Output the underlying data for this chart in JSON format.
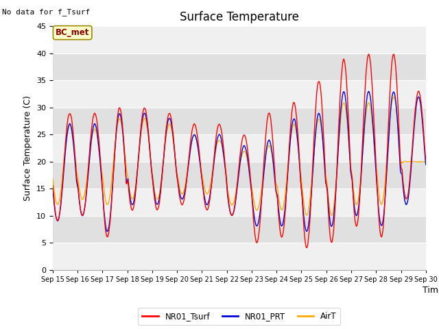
{
  "title": "Surface Temperature",
  "xlabel": "Time",
  "ylabel": "Surface Temperature (C)",
  "top_left_text": "No data for f_Tsurf",
  "bc_met_label": "BC_met",
  "ylim": [
    0,
    45
  ],
  "yticks": [
    0,
    5,
    10,
    15,
    20,
    25,
    30,
    35,
    40,
    45
  ],
  "x_labels": [
    "Sep 15",
    "Sep 16",
    "Sep 17",
    "Sep 18",
    "Sep 19",
    "Sep 20",
    "Sep 21",
    "Sep 22",
    "Sep 23",
    "Sep 24",
    "Sep 25",
    "Sep 26",
    "Sep 27",
    "Sep 28",
    "Sep 29",
    "Sep 30"
  ],
  "legend_labels": [
    "NR01_Tsurf",
    "NR01_PRT",
    "AirT"
  ],
  "colors": {
    "NR01_Tsurf": "#ff0000",
    "NR01_PRT": "#0000dd",
    "AirT": "#ffaa00",
    "bc_met_bg": "#ffffcc",
    "bc_met_border": "#998800",
    "plot_bg_light": "#f0f0f0",
    "plot_bg_dark": "#e0e0e0",
    "grid_line": "#ffffff"
  },
  "mins_tsurf": [
    9,
    10,
    6,
    11,
    11,
    12,
    11,
    10,
    5,
    6,
    4,
    5,
    8,
    6,
    13
  ],
  "maxs_tsurf": [
    29,
    29,
    30,
    30,
    29,
    27,
    27,
    25,
    29,
    31,
    35,
    39,
    40,
    40,
    33
  ],
  "mins_prt": [
    9,
    10,
    7,
    12,
    12,
    13,
    12,
    10,
    8,
    8,
    7,
    8,
    10,
    8,
    12
  ],
  "maxs_prt": [
    27,
    27,
    29,
    29,
    28,
    25,
    25,
    23,
    24,
    28,
    29,
    33,
    33,
    33,
    32
  ],
  "mins_airt": [
    12,
    13,
    12,
    13,
    13,
    14,
    14,
    12,
    11,
    11,
    10,
    10,
    12,
    12,
    20
  ],
  "maxs_airt": [
    27,
    26,
    28,
    28,
    27,
    25,
    24,
    22,
    23,
    27,
    28,
    31,
    31,
    32,
    20
  ]
}
